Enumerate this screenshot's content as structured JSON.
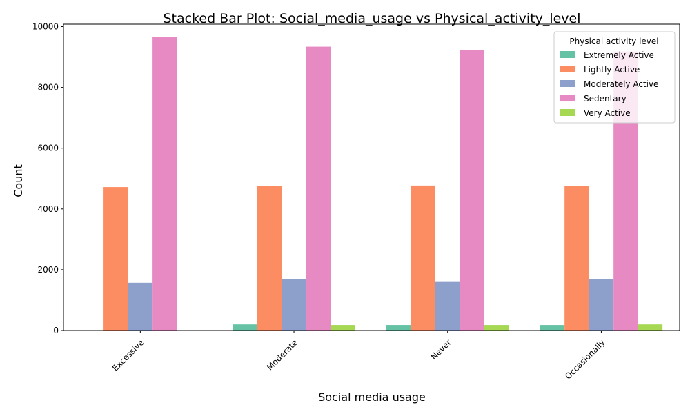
{
  "chart_data": {
    "type": "bar",
    "title": "Stacked Bar Plot: Social_media_usage vs Physical_activity_level",
    "xlabel": "Social media usage",
    "ylabel": "Count",
    "categories": [
      "Excessive",
      "Moderate",
      "Never",
      "Occasionally"
    ],
    "ylim": [
      0,
      10000
    ],
    "yticks": [
      0,
      2000,
      4000,
      6000,
      8000,
      10000
    ],
    "grid": false,
    "legend": {
      "title": "Physical activity level",
      "placement": "top-right"
    },
    "series": [
      {
        "name": "Extremely Active",
        "color": "#66c2a5",
        "values": [
          0,
          200,
          180,
          180
        ]
      },
      {
        "name": "Lightly Active",
        "color": "#fc8d62",
        "values": [
          4720,
          4750,
          4770,
          4750
        ]
      },
      {
        "name": "Moderately Active",
        "color": "#8da0cb",
        "values": [
          1570,
          1690,
          1620,
          1700
        ]
      },
      {
        "name": "Sedentary",
        "color": "#e78ac3",
        "values": [
          9650,
          9340,
          9230,
          9180
        ]
      },
      {
        "name": "Very Active",
        "color": "#a6d854",
        "values": [
          0,
          180,
          180,
          200
        ]
      }
    ]
  }
}
